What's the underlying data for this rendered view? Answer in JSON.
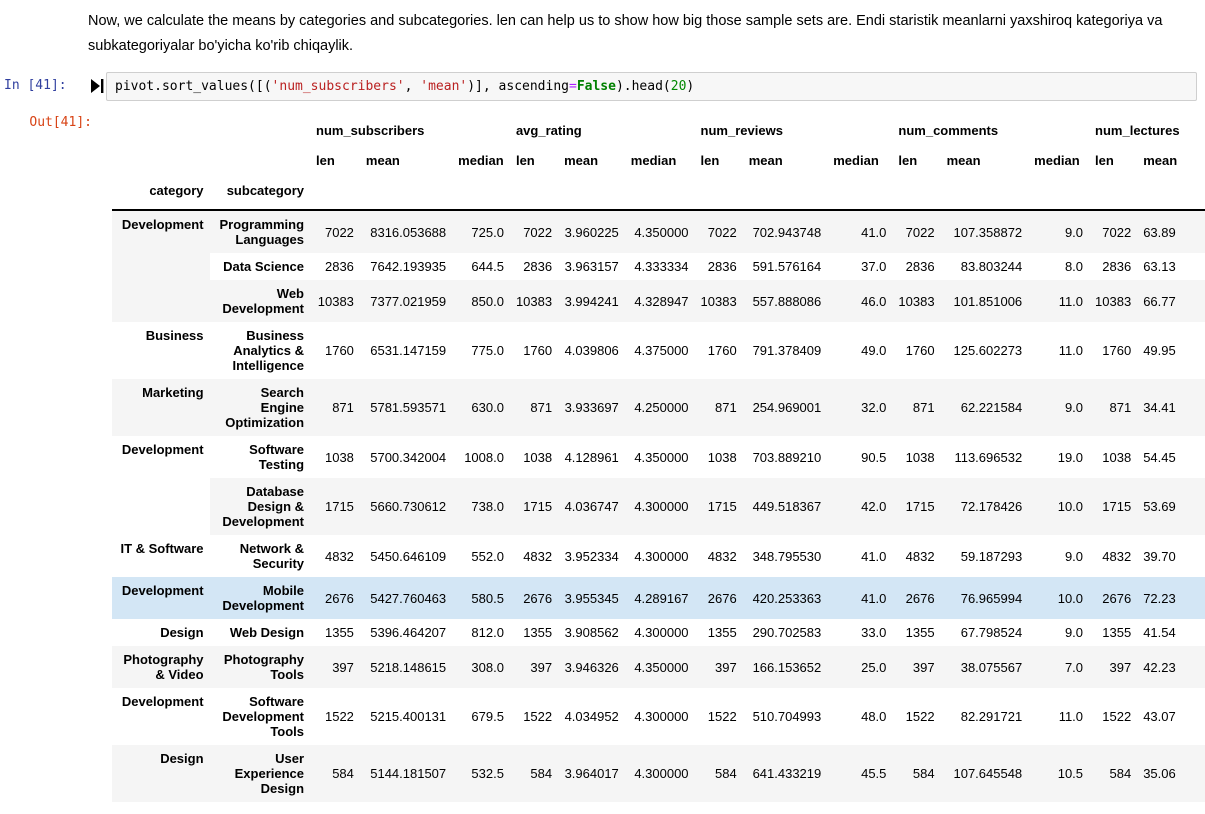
{
  "markdown": {
    "text": "Now, we calculate the means by categories and subcategories. len can help us to show how big those sample sets are. Endi staristik meanlarni yaxshiroq kategoriya va subkategoriyalar bo'yicha ko'rib chiqaylik."
  },
  "code_cell": {
    "in_prompt": "In [41]:",
    "out_prompt": "Out[41]:",
    "code_tokens": [
      {
        "text": "pivot.sort_values([(",
        "type": "plain"
      },
      {
        "text": "'num_subscribers'",
        "type": "string"
      },
      {
        "text": ", ",
        "type": "plain"
      },
      {
        "text": "'mean'",
        "type": "string"
      },
      {
        "text": ")], ascending",
        "type": "plain"
      },
      {
        "text": "=",
        "type": "operator"
      },
      {
        "text": "False",
        "type": "keyword"
      },
      {
        "text": ").head(",
        "type": "plain"
      },
      {
        "text": "20",
        "type": "number"
      },
      {
        "text": ")",
        "type": "plain"
      }
    ]
  },
  "table": {
    "index_names": [
      "category",
      "subcategory"
    ],
    "column_groups": [
      {
        "label": "num_subscribers",
        "columns": [
          "len",
          "mean",
          "median"
        ]
      },
      {
        "label": "avg_rating",
        "columns": [
          "len",
          "mean",
          "median"
        ]
      },
      {
        "label": "num_reviews",
        "columns": [
          "len",
          "mean",
          "median"
        ]
      },
      {
        "label": "num_comments",
        "columns": [
          "len",
          "mean",
          "median"
        ]
      },
      {
        "label": "num_lectures",
        "columns": [
          "len",
          "mean"
        ]
      }
    ],
    "rows": [
      {
        "category": "Development",
        "rowspan": 3,
        "subcategory": "Programming Languages",
        "highlighted": false,
        "values": [
          "7022",
          "8316.053688",
          "725.0",
          "7022",
          "3.960225",
          "4.350000",
          "7022",
          "702.943748",
          "41.0",
          "7022",
          "107.358872",
          "9.0",
          "7022",
          "63.89"
        ]
      },
      {
        "category": null,
        "rowspan": 0,
        "subcategory": "Data Science",
        "highlighted": false,
        "values": [
          "2836",
          "7642.193935",
          "644.5",
          "2836",
          "3.963157",
          "4.333334",
          "2836",
          "591.576164",
          "37.0",
          "2836",
          "83.803244",
          "8.0",
          "2836",
          "63.13"
        ]
      },
      {
        "category": null,
        "rowspan": 0,
        "subcategory": "Web Development",
        "highlighted": false,
        "values": [
          "10383",
          "7377.021959",
          "850.0",
          "10383",
          "3.994241",
          "4.328947",
          "10383",
          "557.888086",
          "46.0",
          "10383",
          "101.851006",
          "11.0",
          "10383",
          "66.77"
        ]
      },
      {
        "category": "Business",
        "rowspan": 1,
        "subcategory": "Business Analytics & Intelligence",
        "highlighted": false,
        "values": [
          "1760",
          "6531.147159",
          "775.0",
          "1760",
          "4.039806",
          "4.375000",
          "1760",
          "791.378409",
          "49.0",
          "1760",
          "125.602273",
          "11.0",
          "1760",
          "49.95"
        ]
      },
      {
        "category": "Marketing",
        "rowspan": 1,
        "subcategory": "Search Engine Optimization",
        "highlighted": false,
        "values": [
          "871",
          "5781.593571",
          "630.0",
          "871",
          "3.933697",
          "4.250000",
          "871",
          "254.969001",
          "32.0",
          "871",
          "62.221584",
          "9.0",
          "871",
          "34.41"
        ]
      },
      {
        "category": "Development",
        "rowspan": 2,
        "subcategory": "Software Testing",
        "highlighted": false,
        "values": [
          "1038",
          "5700.342004",
          "1008.0",
          "1038",
          "4.128961",
          "4.350000",
          "1038",
          "703.889210",
          "90.5",
          "1038",
          "113.696532",
          "19.0",
          "1038",
          "54.45"
        ]
      },
      {
        "category": null,
        "rowspan": 0,
        "subcategory": "Database Design & Development",
        "highlighted": false,
        "values": [
          "1715",
          "5660.730612",
          "738.0",
          "1715",
          "4.036747",
          "4.300000",
          "1715",
          "449.518367",
          "42.0",
          "1715",
          "72.178426",
          "10.0",
          "1715",
          "53.69"
        ]
      },
      {
        "category": "IT & Software",
        "rowspan": 1,
        "subcategory": "Network & Security",
        "highlighted": false,
        "values": [
          "4832",
          "5450.646109",
          "552.0",
          "4832",
          "3.952334",
          "4.300000",
          "4832",
          "348.795530",
          "41.0",
          "4832",
          "59.187293",
          "9.0",
          "4832",
          "39.70"
        ]
      },
      {
        "category": "Development",
        "rowspan": 1,
        "subcategory": "Mobile Development",
        "highlighted": true,
        "values": [
          "2676",
          "5427.760463",
          "580.5",
          "2676",
          "3.955345",
          "4.289167",
          "2676",
          "420.253363",
          "41.0",
          "2676",
          "76.965994",
          "10.0",
          "2676",
          "72.23"
        ]
      },
      {
        "category": "Design",
        "rowspan": 1,
        "subcategory": "Web Design",
        "highlighted": false,
        "values": [
          "1355",
          "5396.464207",
          "812.0",
          "1355",
          "3.908562",
          "4.300000",
          "1355",
          "290.702583",
          "33.0",
          "1355",
          "67.798524",
          "9.0",
          "1355",
          "41.54"
        ]
      },
      {
        "category": "Photography & Video",
        "rowspan": 1,
        "subcategory": "Photography Tools",
        "highlighted": false,
        "values": [
          "397",
          "5218.148615",
          "308.0",
          "397",
          "3.946326",
          "4.350000",
          "397",
          "166.153652",
          "25.0",
          "397",
          "38.075567",
          "7.0",
          "397",
          "42.23"
        ]
      },
      {
        "category": "Development",
        "rowspan": 1,
        "subcategory": "Software Development Tools",
        "highlighted": false,
        "values": [
          "1522",
          "5215.400131",
          "679.5",
          "1522",
          "4.034952",
          "4.300000",
          "1522",
          "510.704993",
          "48.0",
          "1522",
          "82.291721",
          "11.0",
          "1522",
          "43.07"
        ]
      },
      {
        "category": "Design",
        "rowspan": 1,
        "subcategory": "User Experience Design",
        "highlighted": false,
        "values": [
          "584",
          "5144.181507",
          "532.5",
          "584",
          "3.964017",
          "4.300000",
          "584",
          "641.433219",
          "45.5",
          "584",
          "107.645548",
          "10.5",
          "584",
          "35.06"
        ]
      }
    ]
  },
  "colors": {
    "in_prompt": "#303F9F",
    "out_prompt": "#D84315",
    "code_string": "#BA2121",
    "code_keyword": "#008000",
    "code_operator": "#AA22FF",
    "code_number": "#008800",
    "code_cell_bg": "#f7f7f7",
    "code_cell_border": "#cfcfcf",
    "row_stripe": "#f5f5f5",
    "row_highlight": "#d3e6f5",
    "header_border": "#000000"
  }
}
